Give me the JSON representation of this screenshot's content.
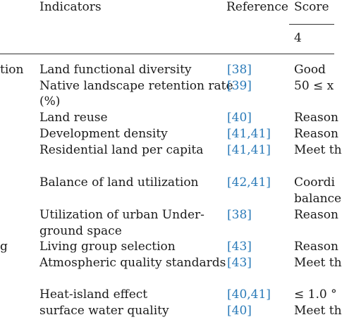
{
  "header": {
    "indicators": "Indicators",
    "reference": "Reference",
    "score": "Score",
    "sub_score": "4"
  },
  "left_fragments": {
    "row1": "tion",
    "row9": "g"
  },
  "rows": [
    {
      "indicator": "Land functional diversity",
      "reference": "[38]",
      "score": "Good"
    },
    {
      "indicator": "Native landscape retention rate",
      "indicator_cont": "(%)",
      "reference": "[39]",
      "score": "50 ≤ x"
    },
    {
      "indicator": "Land reuse",
      "reference": "[40]",
      "score": "Reason"
    },
    {
      "indicator": "Development density",
      "reference": "[41,41]",
      "score": "Reason"
    },
    {
      "indicator": "Residential land per capita",
      "reference": "[41,41]",
      "score": "Meet th"
    },
    {
      "indicator": "Balance of land utilization",
      "reference": "[42,41]",
      "score": "Coordi",
      "score_cont": "balance"
    },
    {
      "indicator": "Utilization of urban Under-",
      "indicator_cont": "ground space",
      "reference": "[38]",
      "score": "Reason"
    },
    {
      "indicator": "Living group selection",
      "reference": "[43]",
      "score": "Reason"
    },
    {
      "indicator": "Atmospheric quality standards",
      "reference": "[43]",
      "score": "Meet th"
    },
    {
      "indicator": "Heat-island effect",
      "reference": "[40,41]",
      "score": "≤ 1.0 °"
    },
    {
      "indicator": "surface water quality",
      "reference": "[40]",
      "score": "Meet th"
    }
  ]
}
